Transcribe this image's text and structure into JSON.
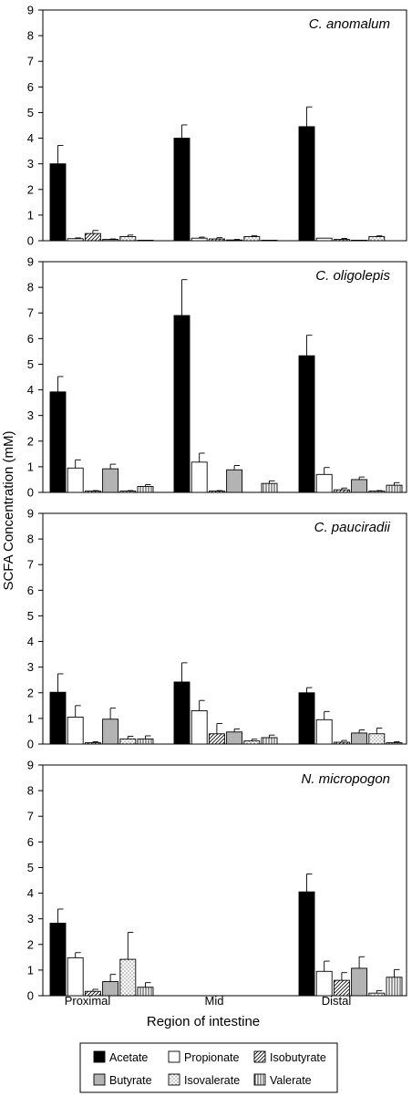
{
  "ylabel": "SCFA Concentration (mM)",
  "xlabel": "Region of intestine",
  "legend_position": "bottom",
  "chart_data": [
    {
      "type": "bar",
      "title": "C. anomalum",
      "categories": [
        "Proximal",
        "Mid",
        "Distal"
      ],
      "ylim": [
        0,
        9
      ],
      "yticks": [
        0,
        1,
        2,
        3,
        4,
        5,
        6,
        7,
        8,
        9
      ],
      "series": [
        {
          "name": "Acetate",
          "values": [
            3.0,
            4.0,
            4.45
          ],
          "errors": [
            0.72,
            0.52,
            0.77
          ]
        },
        {
          "name": "Propionate",
          "values": [
            0.08,
            0.1,
            0.1
          ],
          "errors": [
            0.03,
            0.04,
            0.0
          ]
        },
        {
          "name": "Isobutyrate",
          "values": [
            0.28,
            0.07,
            0.05
          ],
          "errors": [
            0.12,
            0.05,
            0.04
          ]
        },
        {
          "name": "Butyrate",
          "values": [
            0.05,
            0.03,
            0.02
          ],
          "errors": [
            0.02,
            0.02,
            0.0
          ]
        },
        {
          "name": "Isovalerate",
          "values": [
            0.16,
            0.16,
            0.16
          ],
          "errors": [
            0.06,
            0.04,
            0.03
          ]
        },
        {
          "name": "Valerate",
          "values": [
            0.02,
            0.02,
            0.0
          ],
          "errors": [
            0.0,
            0.0,
            0.0
          ]
        }
      ]
    },
    {
      "type": "bar",
      "title": "C. oligolepis",
      "categories": [
        "Proximal",
        "Mid",
        "Distal"
      ],
      "ylim": [
        0,
        9
      ],
      "yticks": [
        0,
        1,
        2,
        3,
        4,
        5,
        6,
        7,
        8,
        9
      ],
      "series": [
        {
          "name": "Acetate",
          "values": [
            3.92,
            6.9,
            5.33
          ],
          "errors": [
            0.6,
            1.4,
            0.8
          ]
        },
        {
          "name": "Propionate",
          "values": [
            0.95,
            1.18,
            0.7
          ],
          "errors": [
            0.32,
            0.35,
            0.27
          ]
        },
        {
          "name": "Isobutyrate",
          "values": [
            0.05,
            0.05,
            0.1
          ],
          "errors": [
            0.02,
            0.02,
            0.07
          ]
        },
        {
          "name": "Butyrate",
          "values": [
            0.92,
            0.88,
            0.5
          ],
          "errors": [
            0.18,
            0.17,
            0.1
          ]
        },
        {
          "name": "Isovalerate",
          "values": [
            0.05,
            0.0,
            0.05
          ],
          "errors": [
            0.02,
            0.0,
            0.02
          ]
        },
        {
          "name": "Valerate",
          "values": [
            0.23,
            0.35,
            0.28
          ],
          "errors": [
            0.07,
            0.1,
            0.1
          ]
        }
      ]
    },
    {
      "type": "bar",
      "title": "C. pauciradii",
      "categories": [
        "Proximal",
        "Mid",
        "Distal"
      ],
      "ylim": [
        0,
        9
      ],
      "yticks": [
        0,
        1,
        2,
        3,
        4,
        5,
        6,
        7,
        8,
        9
      ],
      "series": [
        {
          "name": "Acetate",
          "values": [
            2.02,
            2.42,
            2.0
          ],
          "errors": [
            0.72,
            0.75,
            0.2
          ]
        },
        {
          "name": "Propionate",
          "values": [
            1.05,
            1.3,
            0.95
          ],
          "errors": [
            0.45,
            0.4,
            0.32
          ]
        },
        {
          "name": "Isobutyrate",
          "values": [
            0.05,
            0.4,
            0.07
          ],
          "errors": [
            0.04,
            0.4,
            0.07
          ]
        },
        {
          "name": "Butyrate",
          "values": [
            0.97,
            0.47,
            0.43
          ],
          "errors": [
            0.43,
            0.12,
            0.12
          ]
        },
        {
          "name": "Isovalerate",
          "values": [
            0.2,
            0.12,
            0.4
          ],
          "errors": [
            0.1,
            0.07,
            0.22
          ]
        },
        {
          "name": "Valerate",
          "values": [
            0.2,
            0.25,
            0.05
          ],
          "errors": [
            0.12,
            0.1,
            0.04
          ]
        }
      ]
    },
    {
      "type": "bar",
      "title": "N. micropogon",
      "categories": [
        "Proximal",
        "Mid",
        "Distal"
      ],
      "ylim": [
        0,
        9
      ],
      "yticks": [
        0,
        1,
        2,
        3,
        4,
        5,
        6,
        7,
        8,
        9
      ],
      "series": [
        {
          "name": "Acetate",
          "values": [
            2.83,
            0,
            4.05
          ],
          "errors": [
            0.55,
            0,
            0.7
          ]
        },
        {
          "name": "Propionate",
          "values": [
            1.48,
            0,
            0.95
          ],
          "errors": [
            0.2,
            0,
            0.4
          ]
        },
        {
          "name": "Isobutyrate",
          "values": [
            0.17,
            0,
            0.6
          ],
          "errors": [
            0.08,
            0,
            0.3
          ]
        },
        {
          "name": "Butyrate",
          "values": [
            0.55,
            0,
            1.07
          ],
          "errors": [
            0.28,
            0,
            0.45
          ]
        },
        {
          "name": "Isovalerate",
          "values": [
            1.42,
            0,
            0.1
          ],
          "errors": [
            1.05,
            0,
            0.1
          ]
        },
        {
          "name": "Valerate",
          "values": [
            0.33,
            0,
            0.72
          ],
          "errors": [
            0.18,
            0,
            0.3
          ]
        }
      ]
    }
  ],
  "legend": [
    {
      "label": "Acetate",
      "pattern": "solid-black"
    },
    {
      "label": "Propionate",
      "pattern": "white"
    },
    {
      "label": "Isobutyrate",
      "pattern": "diagonal-hatch"
    },
    {
      "label": "Butyrate",
      "pattern": "solid-gray"
    },
    {
      "label": "Isovalerate",
      "pattern": "dots"
    },
    {
      "label": "Valerate",
      "pattern": "vertical-lines"
    }
  ],
  "colors": {
    "acetate": "#000000",
    "butyrate": "#b3b3b3",
    "frame": "#000000"
  }
}
